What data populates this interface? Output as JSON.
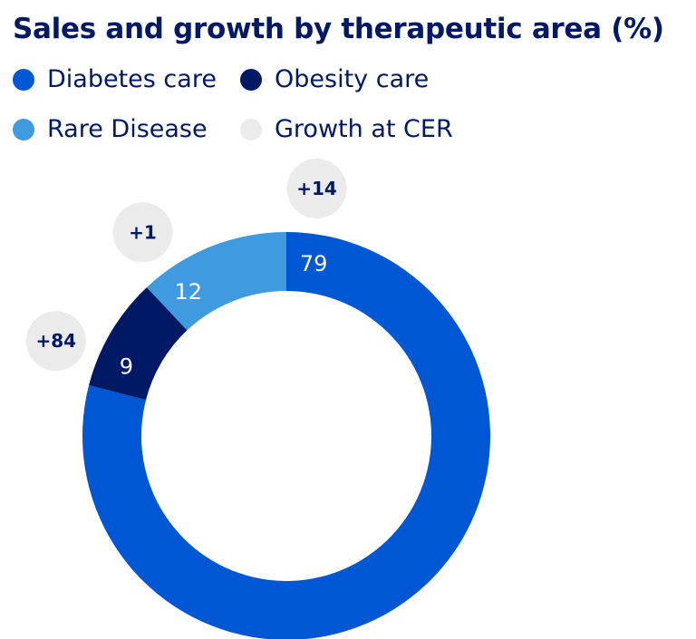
{
  "chart_data": {
    "type": "pie",
    "title": "Sales and growth by therapeutic area (%)",
    "categories": [
      "Diabetes care",
      "Obesity care",
      "Rare Disease"
    ],
    "values": [
      79,
      9,
      12
    ],
    "growth": [
      "+14",
      "+84",
      "+1"
    ],
    "growth_legend": "Growth at CER",
    "colors": [
      "#0057d4",
      "#001965",
      "#3f9ae0"
    ],
    "growth_color": "#ebebeb",
    "legend_position": "top"
  }
}
